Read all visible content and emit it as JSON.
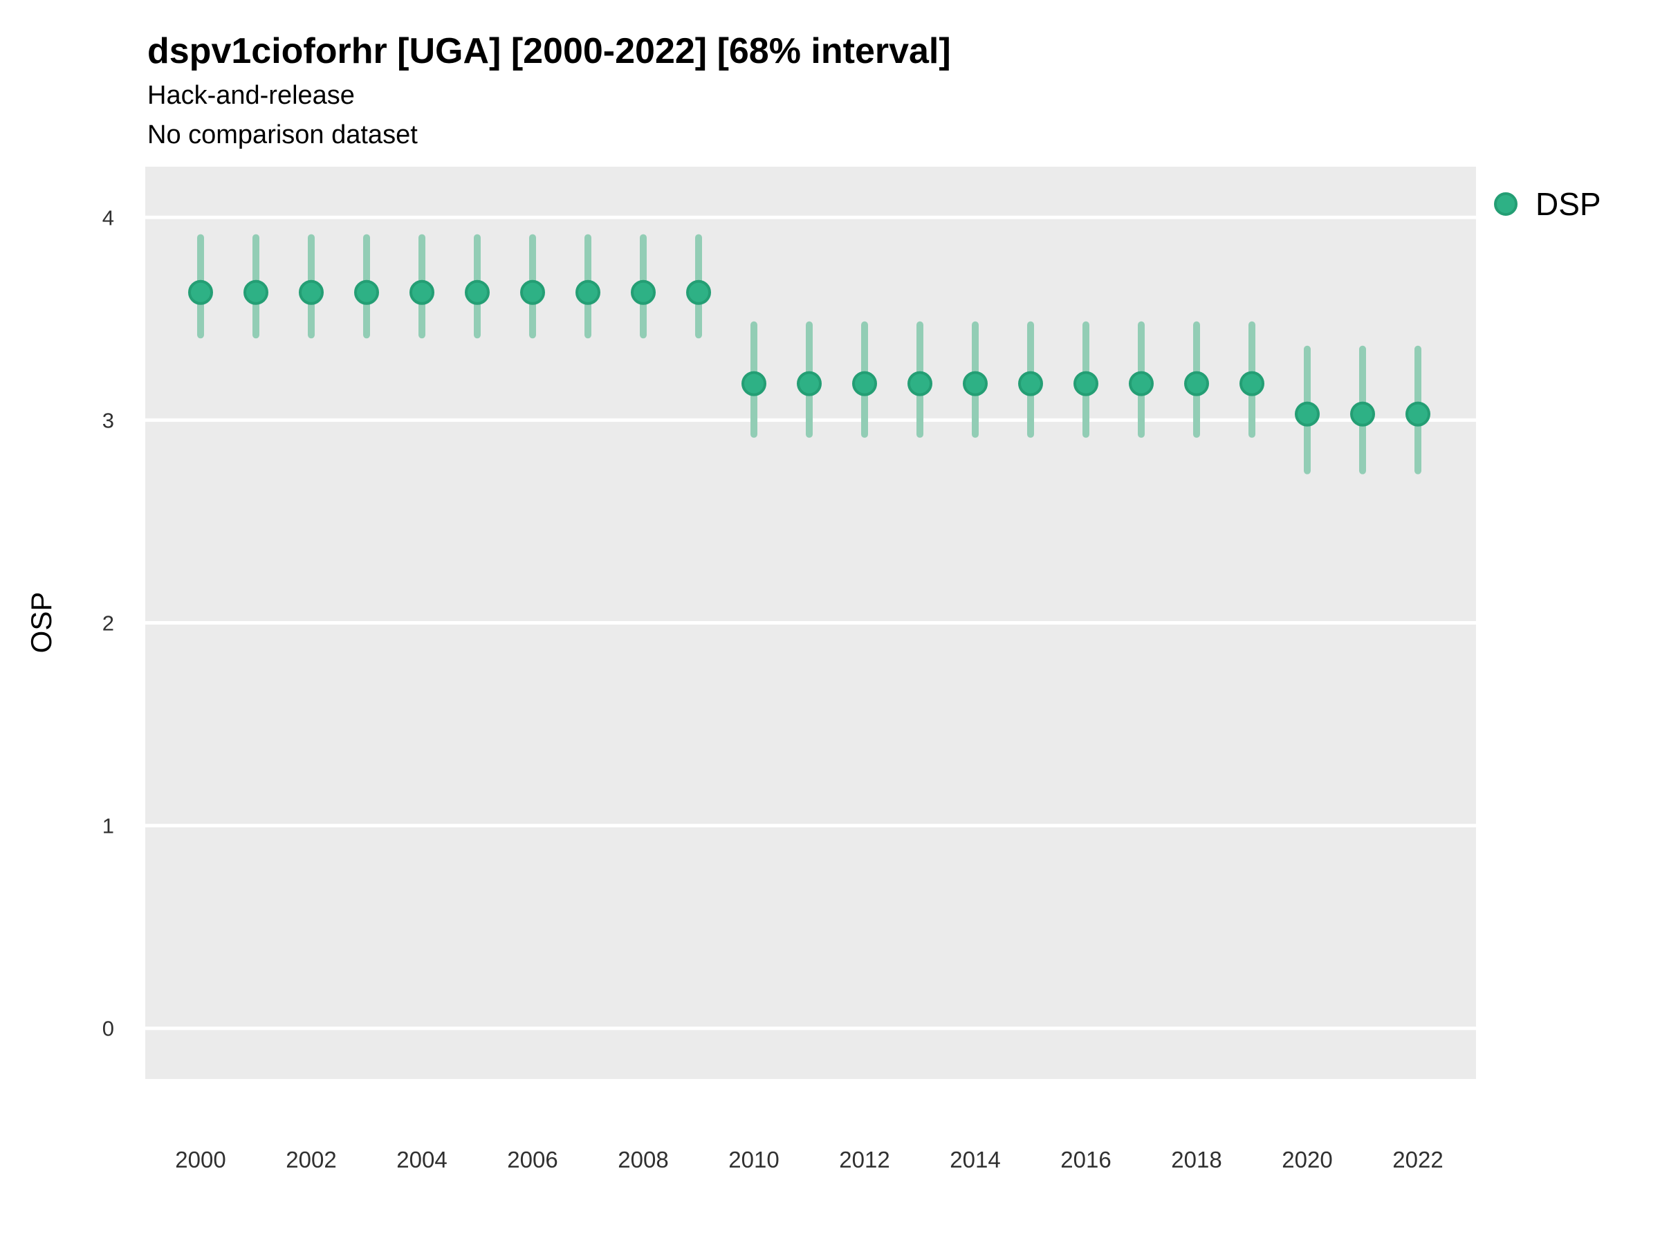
{
  "header": {
    "title": "dspv1cioforhr [UGA] [2000-2022] [68% interval]",
    "subtitle1": "Hack-and-release",
    "subtitle2": "No comparison dataset"
  },
  "legend": {
    "label": "DSP",
    "position": "right"
  },
  "colors": {
    "panel_bg": "#EBEBEB",
    "gridline": "#FFFFFF",
    "point_fill": "#2EB185",
    "point_stroke": "#249E74",
    "interval": "#92CDB5",
    "title_text": "#000000",
    "tick_text": "#303030"
  },
  "chart_data": {
    "type": "scatter",
    "title": "dspv1cioforhr [UGA] [2000-2022] [68% interval]",
    "subtitle1": "Hack-and-release",
    "subtitle2": "No comparison dataset",
    "xlabel": "",
    "ylabel": "OSP",
    "interval_level": "68%",
    "grid": "horizontal major gridlines only, white on gray panel",
    "legend_position": "right",
    "x": [
      2000,
      2001,
      2002,
      2003,
      2004,
      2005,
      2006,
      2007,
      2008,
      2009,
      2010,
      2011,
      2012,
      2013,
      2014,
      2015,
      2016,
      2017,
      2018,
      2019,
      2020,
      2021,
      2022
    ],
    "xticks": [
      2000,
      2002,
      2004,
      2006,
      2008,
      2010,
      2012,
      2014,
      2016,
      2018,
      2020,
      2022
    ],
    "yticks": [
      0,
      1,
      2,
      3,
      4
    ],
    "ylim": [
      -0.25,
      4.25
    ],
    "xlim": [
      1999.0,
      2023.05
    ],
    "series": [
      {
        "name": "DSP",
        "values": [
          3.63,
          3.63,
          3.63,
          3.63,
          3.63,
          3.63,
          3.63,
          3.63,
          3.63,
          3.63,
          3.18,
          3.18,
          3.18,
          3.18,
          3.18,
          3.18,
          3.18,
          3.18,
          3.18,
          3.18,
          3.03,
          3.03,
          3.03
        ],
        "interval_low": [
          3.42,
          3.42,
          3.42,
          3.42,
          3.42,
          3.42,
          3.42,
          3.42,
          3.42,
          3.42,
          2.93,
          2.93,
          2.93,
          2.93,
          2.93,
          2.93,
          2.93,
          2.93,
          2.93,
          2.93,
          2.75,
          2.75,
          2.75
        ],
        "interval_high": [
          3.9,
          3.9,
          3.9,
          3.9,
          3.9,
          3.9,
          3.9,
          3.9,
          3.9,
          3.9,
          3.47,
          3.47,
          3.47,
          3.47,
          3.47,
          3.47,
          3.47,
          3.47,
          3.47,
          3.47,
          3.35,
          3.35,
          3.35
        ]
      }
    ]
  }
}
